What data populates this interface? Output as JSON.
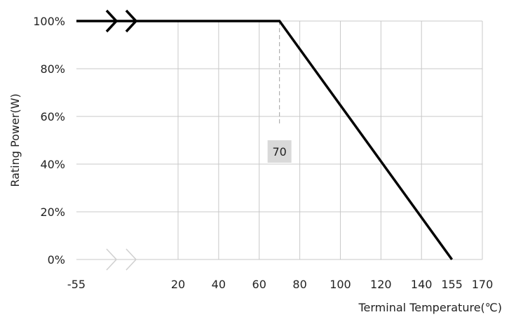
{
  "chart_data": {
    "type": "line",
    "xlabel": "Terminal Temperature(℃)",
    "ylabel": "Rating Power(W)",
    "x_tick_labels": [
      "-55",
      "20",
      "40",
      "60",
      "80",
      "100",
      "120",
      "140",
      "155",
      "170"
    ],
    "y_tick_labels": [
      "0%",
      "20%",
      "40%",
      "60%",
      "80%",
      "100%"
    ],
    "xlim": [
      -55,
      170
    ],
    "ylim": [
      0,
      100
    ],
    "axis_break": {
      "after": -55,
      "before": 20
    },
    "grid": true,
    "series": [
      {
        "color": "#000000",
        "points": [
          {
            "x": -55,
            "y": 100
          },
          {
            "x": 70,
            "y": 100
          },
          {
            "x": 155,
            "y": 0
          }
        ]
      }
    ],
    "annotations": [
      {
        "text": "70",
        "x": 70,
        "y": 40,
        "style": "gray-box"
      }
    ],
    "colors": {
      "line": "#000000",
      "grid": "#c8c8c8",
      "callout_bg": "#d9d9d9",
      "guide": "#a0a0a0",
      "break_top": "#000000",
      "break_bottom": "#d0d0d0"
    }
  }
}
